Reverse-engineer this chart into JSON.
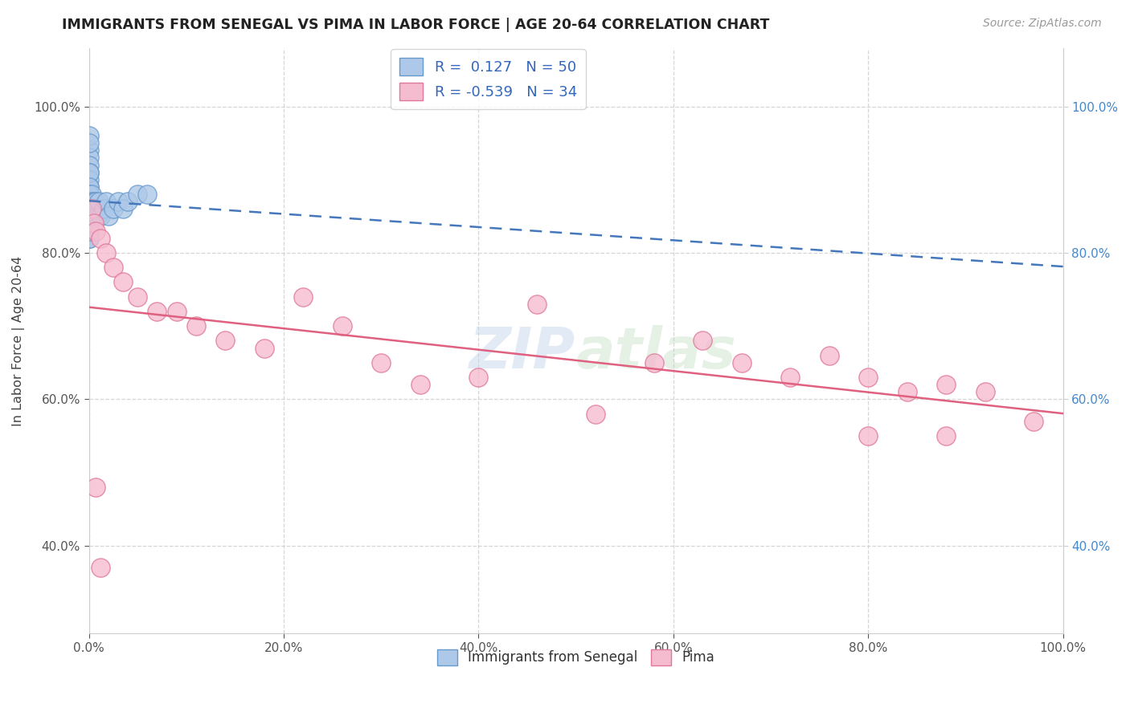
{
  "title": "IMMIGRANTS FROM SENEGAL VS PIMA IN LABOR FORCE | AGE 20-64 CORRELATION CHART",
  "source_text": "Source: ZipAtlas.com",
  "ylabel": "In Labor Force | Age 20-64",
  "xlim": [
    0.0,
    1.0
  ],
  "ylim": [
    0.28,
    1.08
  ],
  "x_ticks": [
    0.0,
    0.2,
    0.4,
    0.6,
    0.8,
    1.0
  ],
  "y_ticks": [
    0.4,
    0.6,
    0.8,
    1.0
  ],
  "background_color": "#ffffff",
  "grid_color": "#cccccc",
  "senegal_color": "#adc8e8",
  "senegal_edge": "#6699cc",
  "pima_color": "#f5bcd0",
  "pima_edge": "#e07898",
  "senegal_line_color": "#4477bb",
  "pima_line_color": "#e06080",
  "legend_R1": "0.127",
  "legend_N1": "50",
  "legend_R2": "-0.539",
  "legend_N2": "34",
  "watermark": "ZIPAtlas",
  "senegal_x": [
    0.0,
    0.0,
    0.0,
    0.0,
    0.0,
    0.0,
    0.0,
    0.0,
    0.0,
    0.0,
    0.0,
    0.0,
    0.0,
    0.0,
    0.0,
    0.0,
    0.0,
    0.0,
    0.0,
    0.0,
    0.0,
    0.0,
    0.0,
    0.0,
    0.0,
    0.0,
    0.0,
    0.0,
    0.0,
    0.0,
    0.003,
    0.003,
    0.004,
    0.004,
    0.005,
    0.005,
    0.007,
    0.008,
    0.009,
    0.01,
    0.012,
    0.015,
    0.018,
    0.02,
    0.025,
    0.03,
    0.035,
    0.04,
    0.05,
    0.06
  ],
  "senegal_y": [
    0.94,
    0.93,
    0.92,
    0.91,
    0.9,
    0.89,
    0.88,
    0.87,
    0.86,
    0.85,
    0.84,
    0.84,
    0.83,
    0.82,
    0.96,
    0.95,
    0.88,
    0.86,
    0.87,
    0.91,
    0.85,
    0.83,
    0.82,
    0.89,
    0.88,
    0.87,
    0.86,
    0.85,
    0.84,
    0.83,
    0.88,
    0.87,
    0.86,
    0.85,
    0.87,
    0.86,
    0.87,
    0.86,
    0.85,
    0.87,
    0.85,
    0.86,
    0.87,
    0.85,
    0.86,
    0.87,
    0.86,
    0.87,
    0.88,
    0.88
  ],
  "pima_x": [
    0.003,
    0.005,
    0.007,
    0.012,
    0.018,
    0.025,
    0.035,
    0.05,
    0.07,
    0.09,
    0.11,
    0.14,
    0.18,
    0.22,
    0.26,
    0.3,
    0.34,
    0.4,
    0.46,
    0.52,
    0.58,
    0.63,
    0.67,
    0.72,
    0.76,
    0.8,
    0.84,
    0.88,
    0.92,
    0.97,
    0.007,
    0.012,
    0.8,
    0.88
  ],
  "pima_y": [
    0.86,
    0.84,
    0.83,
    0.82,
    0.8,
    0.78,
    0.76,
    0.74,
    0.72,
    0.72,
    0.7,
    0.68,
    0.67,
    0.74,
    0.7,
    0.65,
    0.62,
    0.63,
    0.73,
    0.58,
    0.65,
    0.68,
    0.65,
    0.63,
    0.66,
    0.63,
    0.61,
    0.62,
    0.61,
    0.57,
    0.48,
    0.37,
    0.55,
    0.55
  ]
}
